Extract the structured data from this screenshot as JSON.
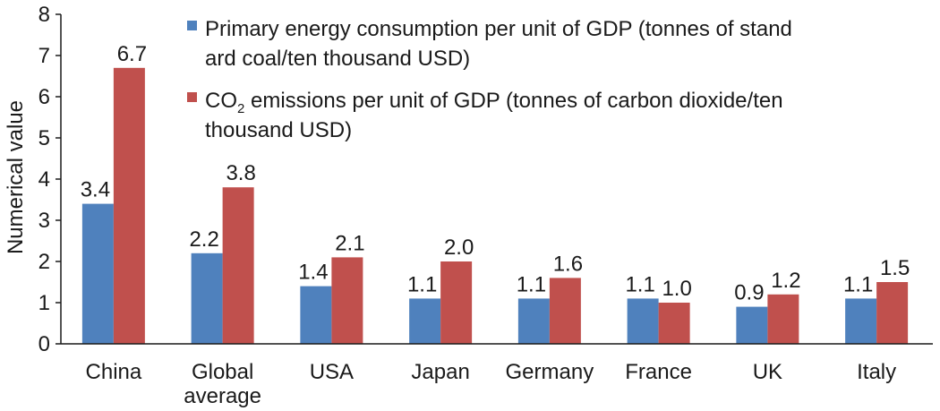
{
  "chart_data": {
    "type": "bar",
    "title": "",
    "xlabel": "",
    "ylabel": "Numerical value",
    "ylim": [
      0,
      8
    ],
    "yticks": [
      "0",
      "1",
      "2",
      "3",
      "4",
      "5",
      "6",
      "7",
      "8"
    ],
    "grid": false,
    "legend_position": "top-right",
    "categories": [
      [
        "China"
      ],
      [
        "Global",
        "average"
      ],
      [
        "USA"
      ],
      [
        "Japan"
      ],
      [
        "Germany"
      ],
      [
        "France"
      ],
      [
        "UK"
      ],
      [
        "Italy"
      ]
    ],
    "series": [
      {
        "name": "Primary energy consumption per unit of GDP (tonnes of standard coal/ten thousand USD)",
        "legend_lines": [
          "Primary energy consumption per unit of GDP (tonnes of stand",
          "ard coal/ten thousand USD)"
        ],
        "color": "#4f81bd",
        "values": [
          3.4,
          2.2,
          1.4,
          1.1,
          1.1,
          1.1,
          0.9,
          1.1
        ],
        "labels": [
          "3.4",
          "2.2",
          "1.4",
          "1.1",
          "1.1",
          "1.1",
          "0.9",
          "1.1"
        ]
      },
      {
        "name": "CO2 emissions per unit of GDP (tonnes of carbon dioxide/ten thousand USD)",
        "legend_line1": {
          "pre": "CO",
          "sub": "2",
          "post": " emissions per unit of GDP (tonnes of carbon dioxide/ten"
        },
        "legend_line2": "thousand USD)",
        "color": "#c0504d",
        "values": [
          6.7,
          3.8,
          2.1,
          2.0,
          1.6,
          1.0,
          1.2,
          1.5
        ],
        "labels": [
          "6.7",
          "3.8",
          "2.1",
          "2.0",
          "1.6",
          "1.0",
          "1.2",
          "1.5"
        ]
      }
    ]
  }
}
